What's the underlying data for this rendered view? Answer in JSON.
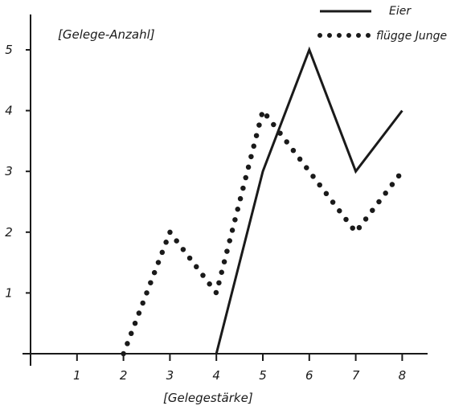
{
  "chart_data": {
    "type": "line",
    "x": [
      1,
      2,
      3,
      4,
      5,
      6,
      7,
      8
    ],
    "series": [
      {
        "name": "Eier",
        "style": "solid",
        "color": "#1a1a1a",
        "points": [
          [
            4,
            0
          ],
          [
            5,
            3
          ],
          [
            6,
            5
          ],
          [
            7,
            3
          ],
          [
            8,
            4
          ]
        ]
      },
      {
        "name": "flügge Junge",
        "style": "dotted",
        "color": "#1a1a1a",
        "points": [
          [
            2,
            0
          ],
          [
            3,
            2
          ],
          [
            4,
            1
          ],
          [
            5,
            4
          ],
          [
            6,
            3
          ],
          [
            7,
            2
          ],
          [
            8,
            3
          ]
        ]
      }
    ],
    "xlabel": "[Gelegestärke]",
    "ylabel": "[Gelege-Anzahl]",
    "xticks": [
      "1",
      "2",
      "3",
      "4",
      "5",
      "6",
      "7",
      "8"
    ],
    "yticks": [
      "1",
      "2",
      "3",
      "4",
      "5"
    ],
    "xlim": [
      0,
      8.6
    ],
    "ylim": [
      0,
      5.5
    ],
    "grid": false,
    "legend": "top-right"
  }
}
